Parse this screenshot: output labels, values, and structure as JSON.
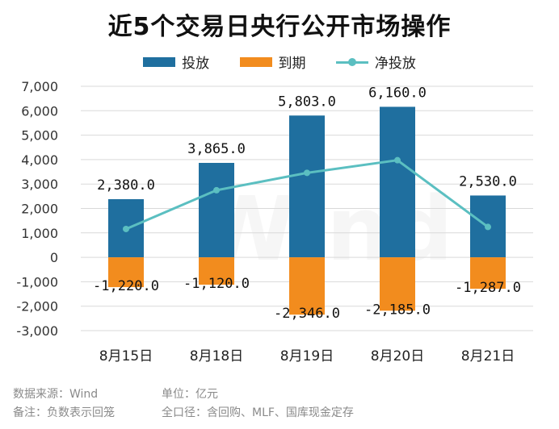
{
  "chart_data": {
    "type": "bar",
    "title": "近5个交易日央行公开市场操作",
    "categories": [
      "8月15日",
      "8月18日",
      "8月19日",
      "8月20日",
      "8月21日"
    ],
    "series": [
      {
        "name": "投放",
        "type": "bar",
        "color": "#1f6f9f",
        "values": [
          2380.0,
          3865.0,
          5803.0,
          6160.0,
          2530.0
        ],
        "labels": [
          "2,380.0",
          "3,865.0",
          "5,803.0",
          "6,160.0",
          "2,530.0"
        ]
      },
      {
        "name": "到期",
        "type": "bar",
        "color": "#f28c1e",
        "values": [
          -1220.0,
          -1120.0,
          -2346.0,
          -2185.0,
          -1287.0
        ],
        "labels": [
          "-1,220.0",
          "-1,120.0",
          "-2,346.0",
          "-2,185.0",
          "-1,287.0"
        ]
      },
      {
        "name": "净投放",
        "type": "line",
        "color": "#5bbfc1",
        "values": [
          1160.0,
          2745.0,
          3457.0,
          3975.0,
          1243.0
        ]
      }
    ],
    "ylim": [
      -3000,
      7000
    ],
    "yticks": [
      "7,000",
      "6,000",
      "5,000",
      "4,000",
      "3,000",
      "2,000",
      "1,000",
      "0",
      "-1,000",
      "-2,000",
      "-3,000"
    ],
    "legend_position": "top-center",
    "grid": true
  },
  "notes": {
    "source": "数据来源：Wind",
    "unit": "单位：亿元",
    "remark": "备注：负数表示回笼",
    "scope": "全口径：含回购、MLF、国库现金定存"
  },
  "watermark": "Wind"
}
